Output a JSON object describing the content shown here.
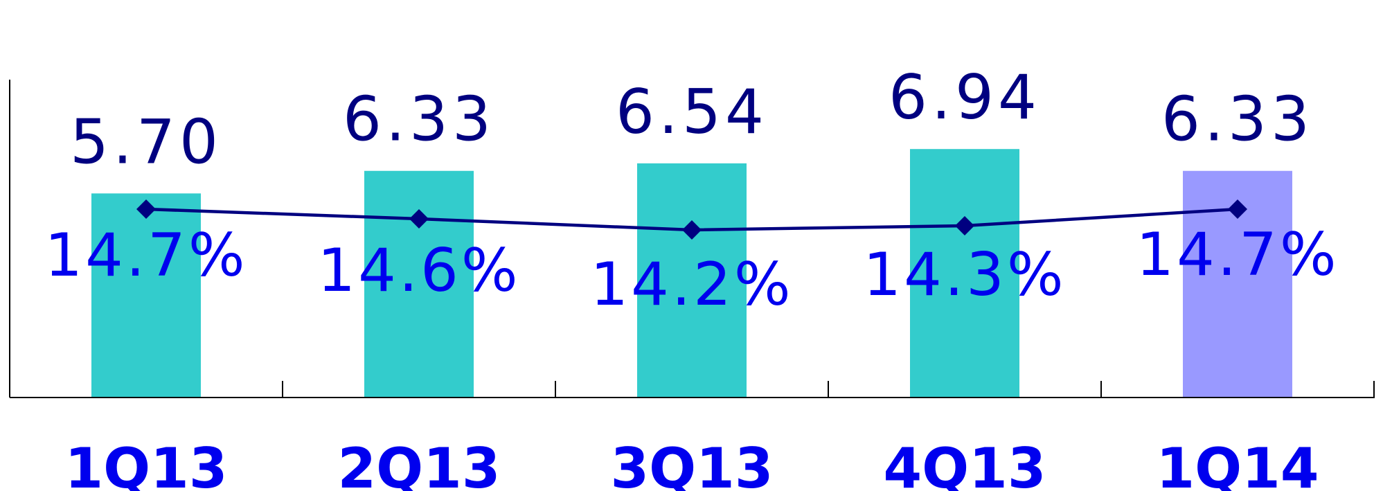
{
  "chart_data": {
    "type": "bar",
    "categories": [
      "1Q13",
      "2Q13",
      "3Q13",
      "4Q13",
      "1Q14"
    ],
    "bar_values": [
      5.7,
      6.33,
      6.54,
      6.94,
      6.33
    ],
    "bar_labels": [
      "5.70",
      "6.33",
      "6.54",
      "6.94",
      "6.33"
    ],
    "line_values": [
      14.7,
      14.6,
      14.2,
      14.3,
      14.7
    ],
    "line_labels": [
      "14.7%",
      "14.6%",
      "14.2%",
      "14.3%",
      "14.7%"
    ],
    "bar_ylim": [
      0,
      8.1
    ],
    "line_ylim": [
      10.0,
      17.5
    ],
    "grid": false,
    "colors": {
      "bar": "#33cccc",
      "bar_highlight": "#9999ff",
      "line": "#000080",
      "bar_label": "#000080",
      "line_label": "#0000ee",
      "category_label": "#0000ee",
      "axis": "#000000"
    },
    "highlight_index": 4
  }
}
